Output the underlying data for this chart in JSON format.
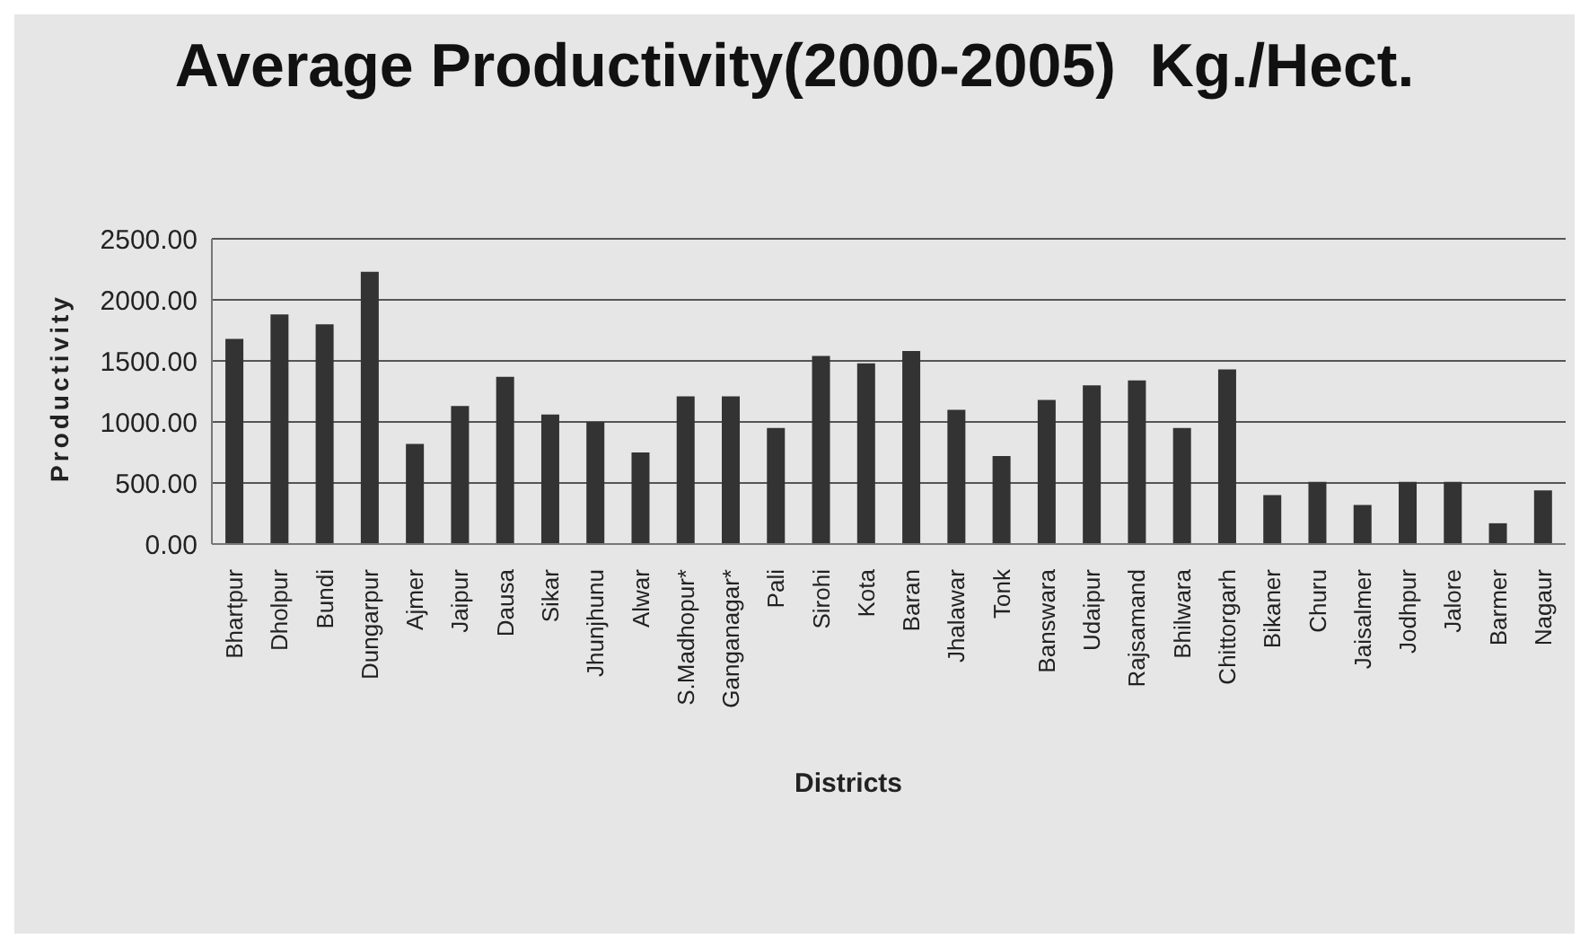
{
  "chart_data": {
    "type": "bar",
    "title": "Average Productivity(2000-2005)  Kg./Hect.",
    "xlabel": "Districts",
    "ylabel": "Productivity",
    "categories": [
      "Bhartpur",
      "Dholpur",
      "Bundi",
      "Dungarpur",
      "Ajmer",
      "Jaipur",
      "Dausa",
      "Sikar",
      "Jhunjhunu",
      "Alwar",
      "S.Madhopur*",
      "Ganganagar*",
      "Pali",
      "Sirohi",
      "Kota",
      "Baran",
      "Jhalawar",
      "Tonk",
      "Banswara",
      "Udaipur",
      "Rajsamand",
      "Bhilwara",
      "Chittorgarh",
      "Bikaner",
      "Churu",
      "Jaisalmer",
      "Jodhpur",
      "Jalore",
      "Barmer",
      "Nagaur"
    ],
    "values": [
      1680,
      1880,
      1800,
      2230,
      820,
      1130,
      1370,
      1060,
      1000,
      750,
      1210,
      1210,
      950,
      1540,
      1480,
      1580,
      1100,
      720,
      1180,
      1300,
      1340,
      950,
      1430,
      400,
      510,
      320,
      510,
      510,
      170,
      440
    ],
    "color": "#333333",
    "ylim": [
      0,
      2500
    ],
    "yticks": [
      {
        "value": 0,
        "label": "0.00"
      },
      {
        "value": 500,
        "label": "500.00"
      },
      {
        "value": 1000,
        "label": "1000.00"
      },
      {
        "value": 1500,
        "label": "1500.00"
      },
      {
        "value": 2000,
        "label": "2000.00"
      },
      {
        "value": 2500,
        "label": "2500.00"
      }
    ],
    "grid": "y"
  }
}
